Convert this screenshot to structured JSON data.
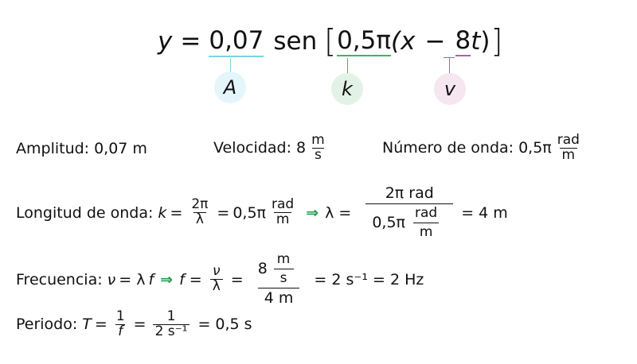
{
  "header": {
    "y": "y",
    "eq": "=",
    "amplitude": "0,07",
    "sen": "sen",
    "lb": "[",
    "k": "0,5π",
    "lp": "(",
    "x": "x",
    "minus": "−",
    "v": "8",
    "t": "t",
    "rp": ")",
    "rb": "]",
    "labels": {
      "A": "A",
      "k": "k",
      "v": "v"
    },
    "colors": {
      "A": "#7fd0e6",
      "k": "#3db36a",
      "v": "#c0589b",
      "A_bg": "#e4f6fb",
      "k_bg": "#e3f2e7",
      "v_bg": "#f6e6f0"
    }
  },
  "amplitud": {
    "label": "Amplitud:",
    "value": "0,07 m"
  },
  "velocidad": {
    "label": "Velocidad:",
    "value": "8",
    "unit_num": "m",
    "unit_den": "s"
  },
  "numero_onda": {
    "label": "Número de onda:",
    "value": "0,5π",
    "unit_num": "rad",
    "unit_den": "m"
  },
  "longitud": {
    "label": "Longitud de onda:",
    "k": "k",
    "eq": "=",
    "f_num": "2π",
    "f_den": "λ",
    "val": "0,5π",
    "unit_num": "rad",
    "unit_den": "m",
    "arrow": "⇒",
    "lambda": "λ =",
    "big_num": "2π rad",
    "big_den_val": "0,5π",
    "big_den_unit_num": "rad",
    "big_den_unit_den": "m",
    "result": "= 4 m"
  },
  "frecuencia": {
    "label": "Frecuencia:",
    "nu": "ν",
    "eq1": "= λ",
    "f": "f",
    "arrow": "⇒",
    "f2": "f",
    "eq2": "=",
    "fr_num": "ν",
    "fr_den": "λ",
    "eq3": "=",
    "big_num_val": "8",
    "big_num_unit_num": "m",
    "big_num_unit_den": "s",
    "big_den": "4 m",
    "result": "= 2 s⁻¹ = 2 Hz"
  },
  "periodo": {
    "label": "Periodo:",
    "T": "T",
    "eq1": "=",
    "f1_num": "1",
    "f1_den": "f",
    "eq2": "=",
    "f2_num": "1",
    "f2_den": "2 s⁻¹",
    "result": "= 0,5 s"
  }
}
